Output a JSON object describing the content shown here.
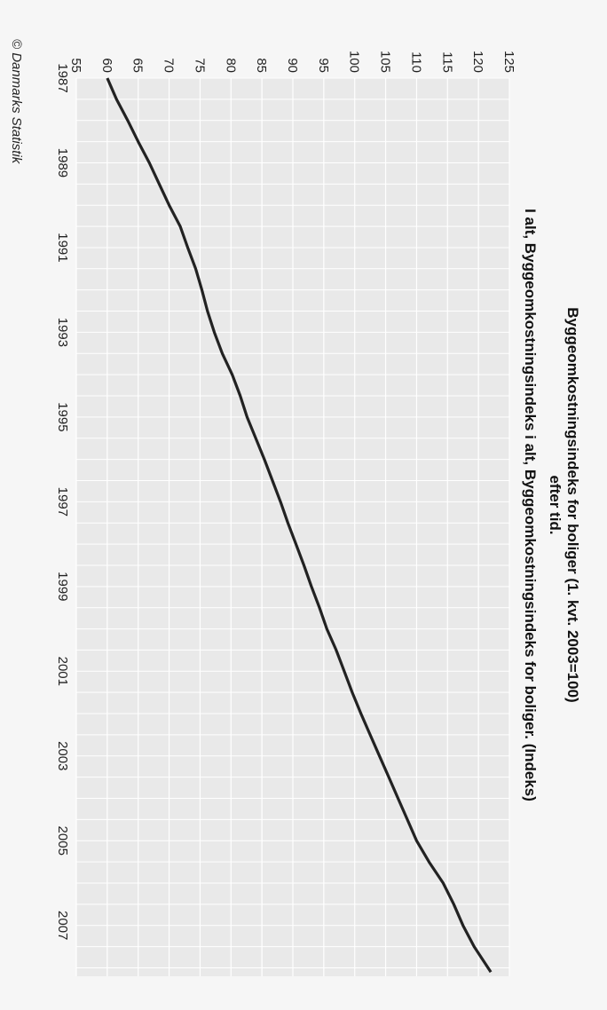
{
  "chart_data": {
    "type": "line",
    "orientation": "rotated 90 degrees clockwise",
    "title": "Byggeomkostningsindeks for boliger (1. kvt. 2003=100)",
    "subtitle": "efter tid.",
    "legend": "I alt, Byggeomkostningsindeks i alt, Byggeomkostningsindeks for boliger. (Indeks)",
    "credit": "© Danmarks Statistik",
    "x_ticks": [
      "1987",
      "1989",
      "1991",
      "1993",
      "1995",
      "1997",
      "1999",
      "2001",
      "2003",
      "2005",
      "2007"
    ],
    "y_ticks": [
      "55",
      "60",
      "65",
      "70",
      "75",
      "80",
      "85",
      "90",
      "95",
      "100",
      "105",
      "110",
      "115",
      "120",
      "125"
    ],
    "xlim": [
      1987,
      2008.2
    ],
    "ylim": [
      55,
      125
    ],
    "grid": true,
    "series": [
      {
        "color": "#222222",
        "points": [
          [
            1987.0,
            60.0
          ],
          [
            1987.5,
            61.5
          ],
          [
            1988.0,
            63.3
          ],
          [
            1988.5,
            65.0
          ],
          [
            1989.0,
            66.8
          ],
          [
            1989.5,
            68.4
          ],
          [
            1990.0,
            70.0
          ],
          [
            1990.5,
            71.8
          ],
          [
            1991.0,
            73.0
          ],
          [
            1991.5,
            74.3
          ],
          [
            1992.0,
            75.3
          ],
          [
            1992.5,
            76.2
          ],
          [
            1993.0,
            77.3
          ],
          [
            1993.5,
            78.6
          ],
          [
            1994.0,
            80.2
          ],
          [
            1994.5,
            81.5
          ],
          [
            1995.0,
            82.6
          ],
          [
            1995.5,
            84.0
          ],
          [
            1996.0,
            85.4
          ],
          [
            1996.5,
            86.7
          ],
          [
            1997.0,
            88.0
          ],
          [
            1997.5,
            89.2
          ],
          [
            1998.0,
            90.5
          ],
          [
            1998.5,
            91.8
          ],
          [
            1999.0,
            93.0
          ],
          [
            1999.5,
            94.3
          ],
          [
            2000.0,
            95.5
          ],
          [
            2000.5,
            97.0
          ],
          [
            2001.0,
            98.3
          ],
          [
            2001.5,
            99.6
          ],
          [
            2002.0,
            101.0
          ],
          [
            2002.5,
            102.5
          ],
          [
            2003.0,
            104.0
          ],
          [
            2003.5,
            105.5
          ],
          [
            2004.0,
            107.0
          ],
          [
            2004.5,
            108.5
          ],
          [
            2005.0,
            110.0
          ],
          [
            2005.5,
            112.0
          ],
          [
            2006.0,
            114.3
          ],
          [
            2006.5,
            116.0
          ],
          [
            2007.0,
            117.5
          ],
          [
            2007.5,
            119.3
          ],
          [
            2008.1,
            122.0
          ]
        ]
      }
    ]
  }
}
